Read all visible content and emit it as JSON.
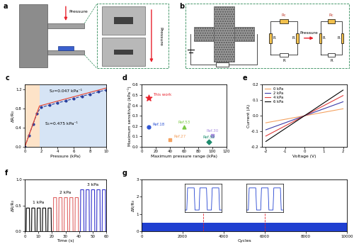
{
  "figure_panels": [
    {
      "label": "a",
      "arrow_labels": [
        "Pressure",
        "Pressure"
      ]
    },
    {
      "label": "b",
      "arrow_label": "Pressure",
      "left_circuit": [
        "Rc",
        "R",
        "R",
        "R"
      ],
      "right_circuit": [
        "Rc",
        "R",
        "R",
        "R"
      ]
    }
  ],
  "chart_data": [
    {
      "type": "line",
      "title": "c",
      "x_label": "Pressure (kPa)",
      "y_label": "ΔR/R₀",
      "xlim": [
        0,
        10
      ],
      "xticks": [
        0,
        2,
        4,
        6,
        8,
        10
      ],
      "ylim": [
        0,
        1.3
      ],
      "yticks": [
        {
          "value": 0,
          "label": "0.0"
        },
        0.4,
        0.8,
        1.2
      ],
      "series": [
        {
          "color": "#2a3f9d",
          "marker": "circle",
          "line_style": "dashed",
          "x": [
            0,
            0.5,
            1,
            1.5,
            2,
            3,
            4,
            5,
            6,
            7,
            8,
            9,
            10
          ],
          "values": [
            0,
            0.24,
            0.47,
            0.7,
            0.83,
            0.87,
            0.92,
            0.96,
            1.01,
            1.06,
            1.1,
            1.15,
            1.19
          ]
        },
        {
          "color": "#e8412c",
          "marker": "none",
          "line_style": "solid",
          "x": [
            0,
            1.8,
            10
          ],
          "values": [
            0,
            0.855,
            1.23
          ]
        }
      ],
      "annotations": [
        {
          "text": "S₁=0.475 kPa⁻¹",
          "x": 4.5,
          "y": 0.45
        },
        {
          "text": "S₂=0.047 kPa⁻¹",
          "x": 5,
          "y": 1.12
        }
      ]
    },
    {
      "type": "scatter",
      "title": "d",
      "x_label": "Maximum pressure range (kPa)",
      "y_label": "Maximum sensitivity (kPa⁻¹)",
      "xlim": [
        0,
        120
      ],
      "xticks": [
        0,
        20,
        40,
        60,
        80,
        100,
        120
      ],
      "ylim": [
        0,
        0.6
      ],
      "yticks": [
        {
          "value": 0,
          "label": "0.0"
        },
        0.1,
        0.2,
        0.3,
        0.4,
        0.5,
        0.6
      ],
      "series": [
        {
          "name": "This work",
          "color": "#e8212c",
          "marker": "star",
          "x": [
            10
          ],
          "values": [
            0.475
          ]
        },
        {
          "name": "Ref.18",
          "color": "#2f55d4",
          "marker": "circle",
          "x": [
            10
          ],
          "values": [
            0.19
          ]
        },
        {
          "name": "Ref.27",
          "color": "#f4a261",
          "marker": "square",
          "x": [
            40
          ],
          "values": [
            0.07
          ]
        },
        {
          "name": "Ref.53",
          "color": "#7ac943",
          "marker": "triangle",
          "x": [
            60
          ],
          "values": [
            0.19
          ]
        },
        {
          "name": "Ref.30",
          "color": "#a98ee0",
          "marker": "square",
          "x": [
            100
          ],
          "values": [
            0.11
          ]
        },
        {
          "name": "Ref.52",
          "color": "#1e8c6e",
          "marker": "diamond",
          "x": [
            95
          ],
          "values": [
            0.05
          ]
        }
      ]
    },
    {
      "type": "line",
      "title": "e",
      "x_label": "Voltage (V)",
      "y_label": "Current (A)",
      "xlim": [
        -2.2,
        2.2
      ],
      "xticks": [
        -2,
        -1,
        0,
        1,
        2
      ],
      "ylim": [
        -0.2,
        0.2
      ],
      "yticks": [
        -0.2,
        -0.1,
        {
          "value": 0,
          "label": "0.0"
        },
        0.1,
        0.2
      ],
      "legend": "upper left",
      "series": [
        {
          "name": "0 kPa",
          "color": "#f4a261",
          "x": [
            -2,
            2
          ],
          "values": [
            -0.045,
            0.045
          ]
        },
        {
          "name": "2 kPa",
          "color": "#3b3ba8",
          "x": [
            -2,
            2
          ],
          "values": [
            -0.09,
            0.09
          ]
        },
        {
          "name": "4 kPa",
          "color": "#e03c3c",
          "x": [
            -2,
            2
          ],
          "values": [
            -0.13,
            0.13
          ]
        },
        {
          "name": "6 kPa",
          "color": "#000000",
          "x": [
            -2,
            2
          ],
          "values": [
            -0.165,
            0.165
          ]
        }
      ]
    },
    {
      "type": "line",
      "title": "f",
      "x_label": "Time (s)",
      "y_label": "ΔR/R₀",
      "xlim": [
        0,
        60
      ],
      "xticks": [
        0,
        10,
        20,
        30,
        40,
        50,
        60
      ],
      "ylim": [
        0,
        1.0
      ],
      "yticks": [
        {
          "value": 0,
          "label": "0.0"
        },
        0.5,
        {
          "value": 1,
          "label": "1.0"
        }
      ],
      "series": [
        {
          "color": "#000000",
          "x": [
            0,
            1,
            1.2,
            3.4,
            3.6,
            5,
            5.2,
            7.4,
            7.6,
            9,
            9.2,
            11.4,
            11.6,
            13,
            13.2,
            15.4,
            15.6,
            17,
            17.2,
            19.4,
            19.6,
            20
          ],
          "values": [
            0,
            0,
            0.45,
            0.45,
            0,
            0,
            0.45,
            0.45,
            0,
            0,
            0.45,
            0.45,
            0,
            0,
            0.45,
            0.45,
            0,
            0,
            0.45,
            0.45,
            0,
            0
          ]
        },
        {
          "color": "#e06666",
          "x": [
            20,
            21,
            21.2,
            23.4,
            23.6,
            25,
            25.2,
            27.4,
            27.6,
            29,
            29.2,
            31.4,
            31.6,
            33,
            33.2,
            35.4,
            35.6,
            37,
            37.2,
            39.4,
            39.6,
            40
          ],
          "values": [
            0,
            0,
            0.65,
            0.65,
            0,
            0,
            0.65,
            0.65,
            0,
            0,
            0.65,
            0.65,
            0,
            0,
            0.65,
            0.65,
            0,
            0,
            0.65,
            0.65,
            0,
            0
          ]
        },
        {
          "color": "#3333cc",
          "x": [
            40,
            41,
            41.2,
            43.4,
            43.6,
            45,
            45.2,
            47.4,
            47.6,
            49,
            49.2,
            51.4,
            51.6,
            53,
            53.2,
            55.4,
            55.6,
            57,
            57.2,
            59.4,
            59.6,
            60
          ],
          "values": [
            0,
            0,
            0.8,
            0.8,
            0,
            0,
            0.8,
            0.8,
            0,
            0,
            0.8,
            0.8,
            0,
            0,
            0.8,
            0.8,
            0,
            0,
            0.8,
            0.8,
            0,
            0
          ]
        }
      ],
      "annotations": [
        {
          "text": "1 kPa",
          "x": 10,
          "y": 0.52
        },
        {
          "text": "2 kPa",
          "x": 30,
          "y": 0.71
        },
        {
          "text": "3 kPa",
          "x": 50,
          "y": 0.86
        }
      ]
    },
    {
      "type": "area",
      "title": "g",
      "x_label": "Cycles",
      "y_label": "ΔR/R₀",
      "xlim": [
        0,
        10000
      ],
      "xticks": [
        0,
        2000,
        4000,
        6000,
        8000,
        10000
      ],
      "ylim": [
        0,
        3
      ],
      "yticks": [
        0,
        1,
        2,
        3
      ],
      "series": [
        {
          "color": "#1f3fd1",
          "x": [
            0,
            10000
          ],
          "low": [
            0,
            0
          ],
          "values": [
            0.5,
            0.5
          ]
        }
      ],
      "highlighted_cycles": [
        3000,
        6000
      ],
      "insets": [
        {
          "tick_labels": false,
          "color": "#1f3fd1",
          "xlim": [
            0,
            9
          ],
          "ylim": [
            -0.05,
            0.6
          ],
          "x": [
            0,
            0.5,
            0.7,
            2.3,
            2.5,
            3.5,
            3.7,
            5.3,
            5.5,
            6.5,
            6.7,
            8.3,
            8.5,
            9
          ],
          "values": [
            0,
            0,
            0.5,
            0.5,
            0,
            0,
            0.5,
            0.5,
            0,
            0,
            0.5,
            0.5,
            0,
            0
          ]
        },
        {
          "tick_labels": false,
          "color": "#1f3fd1",
          "xlim": [
            0,
            9
          ],
          "ylim": [
            -0.05,
            0.6
          ],
          "x": [
            0,
            0.5,
            0.7,
            2.3,
            2.5,
            3.5,
            3.7,
            5.3,
            5.5,
            6.5,
            6.7,
            8.3,
            8.5,
            9
          ],
          "values": [
            0,
            0,
            0.5,
            0.5,
            0,
            0,
            0.5,
            0.5,
            0,
            0,
            0.5,
            0.5,
            0,
            0
          ]
        }
      ]
    }
  ]
}
